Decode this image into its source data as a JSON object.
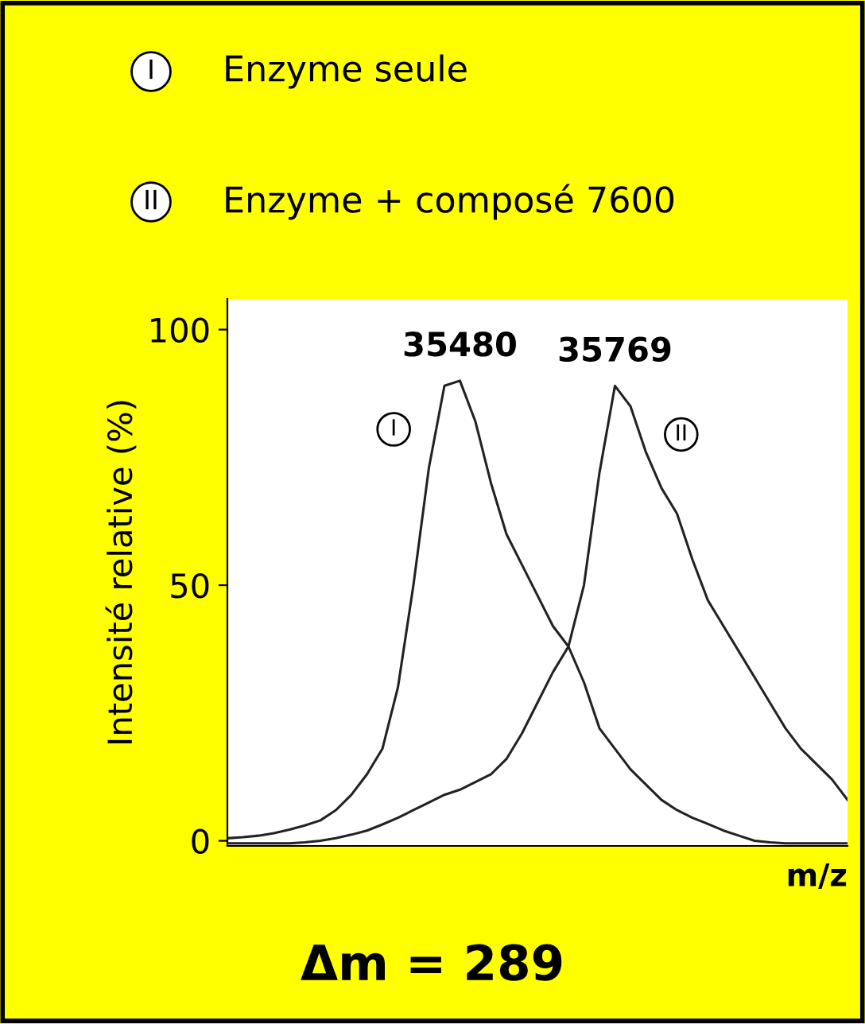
{
  "chart_data": {
    "type": "line",
    "xlabel": "m/z",
    "ylabel": "Intensité relative (%)",
    "ylim": [
      -1,
      106
    ],
    "yticks": [
      0,
      50,
      100
    ],
    "grid": false,
    "categories": [
      null,
      null,
      null,
      null,
      null,
      null,
      null,
      null,
      null,
      null,
      null,
      null,
      null,
      null,
      null,
      null,
      null,
      null,
      null,
      null,
      null,
      null,
      null,
      null,
      null,
      null,
      null,
      null,
      null,
      null,
      null,
      null,
      null,
      null,
      null,
      null,
      null,
      null,
      null,
      null,
      null
    ],
    "series": [
      {
        "color": "#222222",
        "values": [
          0.5,
          0.7,
          1,
          1.5,
          2.2,
          3,
          4,
          6,
          9,
          13,
          18,
          30,
          50,
          73,
          89,
          90,
          82,
          70,
          60,
          54,
          48,
          42,
          38,
          31,
          22,
          18,
          14,
          11,
          8,
          6,
          4.5,
          3.3,
          2,
          1,
          0,
          -0.3,
          -0.5,
          -0.5,
          -0.5,
          -0.5,
          -0.5
        ]
      },
      {
        "color": "#222222",
        "values": [
          -0.5,
          -0.5,
          -0.5,
          -0.5,
          -0.5,
          -0.3,
          0,
          0.5,
          1.2,
          2,
          3.2,
          4.5,
          6,
          7.5,
          9,
          10,
          11.5,
          13,
          16,
          21,
          27,
          33,
          38,
          50,
          72,
          89,
          85,
          76,
          69,
          64,
          55,
          47,
          42,
          37,
          32,
          27,
          22,
          18,
          15,
          12,
          8
        ]
      }
    ],
    "annotations": [
      "I",
      "Enzyme seule",
      "II",
      "Enzyme + composé 7600",
      "35480",
      "35769",
      "I",
      "II",
      "Δm = 289"
    ]
  }
}
